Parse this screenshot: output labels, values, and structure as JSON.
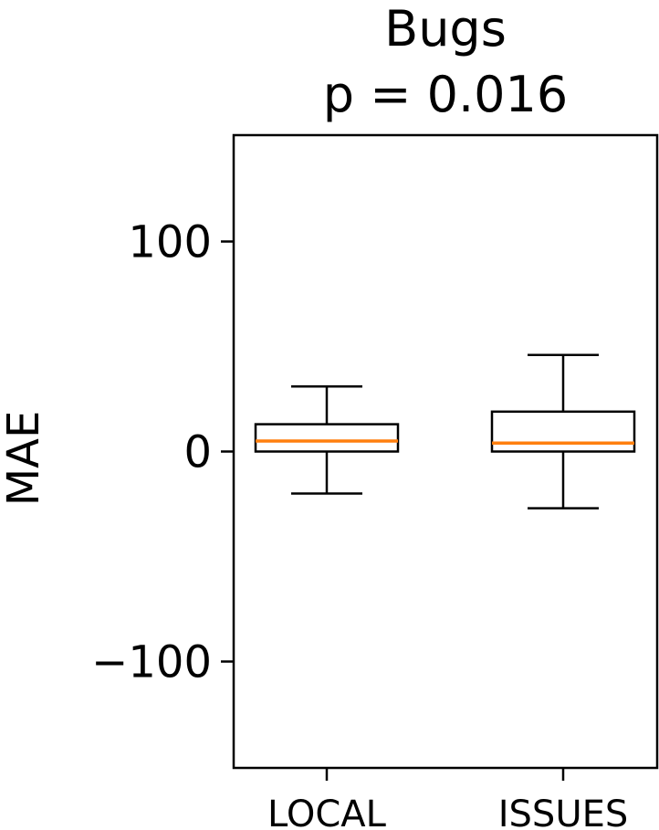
{
  "chart_data": {
    "type": "box",
    "title": "Bugs",
    "subtitle": "p = 0.016",
    "ylabel": "MAE",
    "xlabel": "",
    "ylim": [
      -150,
      150
    ],
    "yticks": [
      -100,
      0,
      100
    ],
    "ytick_labels": [
      "−100",
      "0",
      "100"
    ],
    "categories": [
      "LOCAL",
      "ISSUES"
    ],
    "boxes": [
      {
        "category": "LOCAL",
        "whisker_low": -20,
        "q1": 0,
        "median": 5,
        "q3": 13,
        "whisker_high": 31
      },
      {
        "category": "ISSUES",
        "whisker_low": -27,
        "q1": 0,
        "median": 4,
        "q3": 19,
        "whisker_high": 46
      }
    ],
    "grid": false,
    "colors": {
      "median": "#ff7f0e",
      "box": "#000000",
      "axes": "#000000"
    }
  }
}
